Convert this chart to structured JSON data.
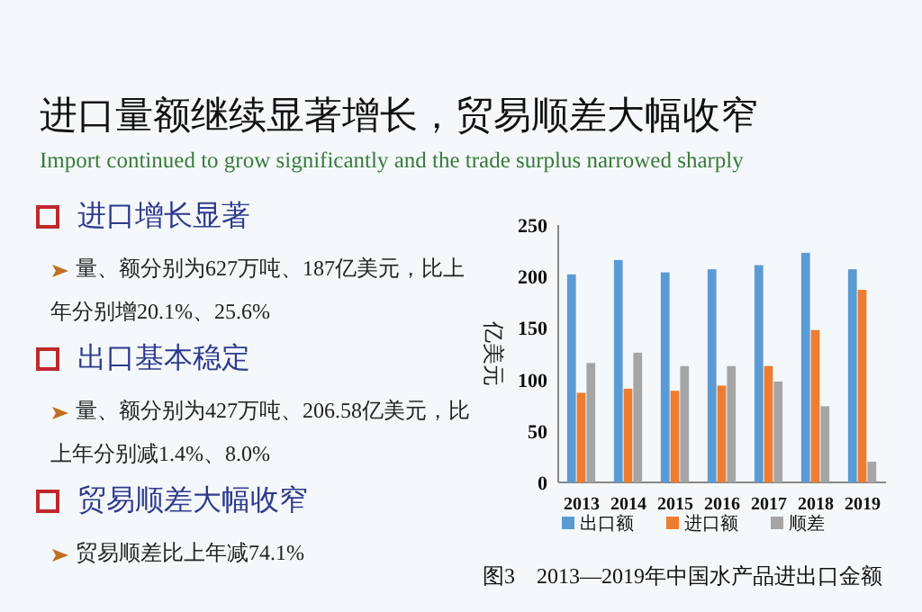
{
  "chart_data": {
    "type": "bar",
    "title": "进口量额继续显著增长，贸易顺差大幅收窄",
    "subtitle": "Import continued to grow significantly and the trade surplus narrowed sharply",
    "ylabel": "亿美元",
    "categories": [
      "2013",
      "2014",
      "2015",
      "2016",
      "2017",
      "2018",
      "2019"
    ],
    "series": [
      {
        "name": "出口额",
        "color": "#5b9bd5",
        "values": [
          202,
          216,
          204,
          207,
          211,
          223,
          207
        ]
      },
      {
        "name": "进口额",
        "color": "#ed7d31",
        "values": [
          87,
          91,
          89,
          94,
          113,
          148,
          187
        ]
      },
      {
        "name": "顺差",
        "color": "#a5a5a5",
        "values": [
          116,
          126,
          113,
          113,
          98,
          74,
          20
        ]
      }
    ],
    "ylim": [
      0,
      250
    ],
    "yticks": [
      0,
      50,
      100,
      150,
      200,
      250
    ],
    "grid": false,
    "legend": "bottom",
    "annotations": [
      "进口增长显著",
      "量、额分别为627万吨、187亿美元，比上年分别增20.1%、25.6%",
      "出口基本稳定",
      "量、额分别为427万吨、206.58亿美元，比上年分别减1.4%、8.0%",
      "贸易顺差大幅收窄",
      "贸易顺差比上年减74.1%",
      "图3　2013—2019年中国水产品进出口金额"
    ]
  }
}
